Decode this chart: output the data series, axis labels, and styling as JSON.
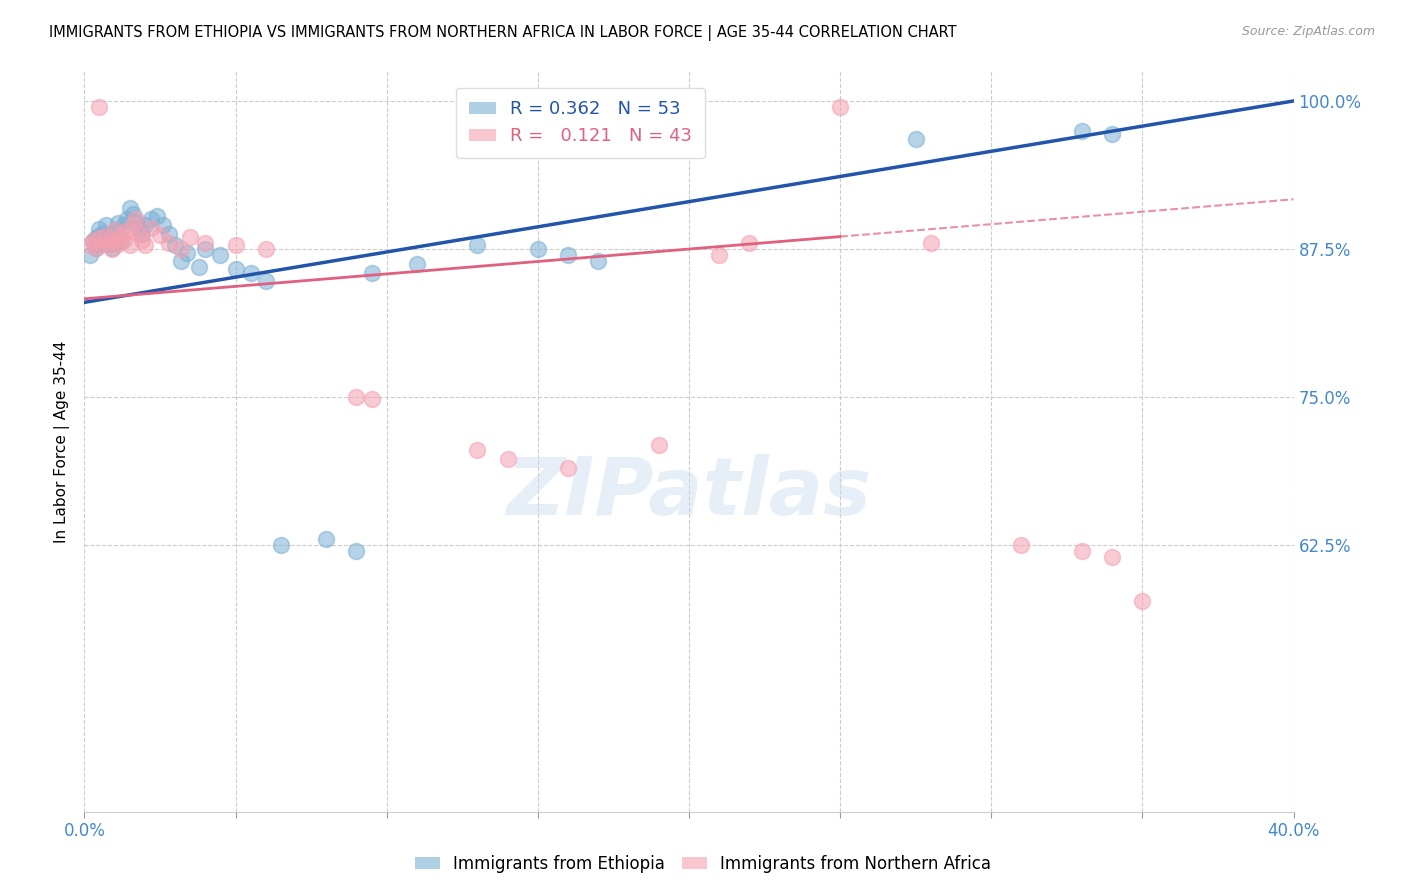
{
  "title": "IMMIGRANTS FROM ETHIOPIA VS IMMIGRANTS FROM NORTHERN AFRICA IN LABOR FORCE | AGE 35-44 CORRELATION CHART",
  "source": "Source: ZipAtlas.com",
  "ylabel": "In Labor Force | Age 35-44",
  "xlim": [
    0.0,
    0.4
  ],
  "ylim": [
    0.4,
    1.025
  ],
  "yticks": [
    1.0,
    0.875,
    0.75,
    0.625
  ],
  "ytick_labels": [
    "100.0%",
    "87.5%",
    "75.0%",
    "62.5%"
  ],
  "xticks": [
    0.0,
    0.05,
    0.1,
    0.15,
    0.2,
    0.25,
    0.3,
    0.35,
    0.4
  ],
  "xtick_labels": [
    "0.0%",
    "",
    "",
    "",
    "",
    "",
    "",
    "",
    "40.0%"
  ],
  "blue_color": "#7BAFD4",
  "pink_color": "#F4A0B0",
  "blue_line_color": "#2255AA",
  "pink_line_color": "#E06080",
  "axis_color": "#4488CC",
  "grid_color": "#CCCCCC",
  "r_blue": 0.362,
  "n_blue": 53,
  "r_pink": 0.121,
  "n_pink": 43,
  "watermark_text": "ZIPatlas",
  "title_fontsize": 11,
  "ylabel_fontsize": 11,
  "blue_x": [
    0.002,
    0.003,
    0.004,
    0.004,
    0.005,
    0.005,
    0.005,
    0.006,
    0.006,
    0.007,
    0.007,
    0.008,
    0.008,
    0.009,
    0.009,
    0.01,
    0.01,
    0.011,
    0.011,
    0.012,
    0.013,
    0.014,
    0.015,
    0.016,
    0.017,
    0.018,
    0.019,
    0.02,
    0.022,
    0.024,
    0.026,
    0.028,
    0.03,
    0.032,
    0.034,
    0.038,
    0.04,
    0.045,
    0.05,
    0.055,
    0.06,
    0.065,
    0.08,
    0.09,
    0.095,
    0.11,
    0.13,
    0.15,
    0.16,
    0.17,
    0.275,
    0.33,
    0.34
  ],
  "blue_y": [
    0.87,
    0.882,
    0.876,
    0.884,
    0.879,
    0.886,
    0.892,
    0.88,
    0.888,
    0.883,
    0.895,
    0.879,
    0.887,
    0.876,
    0.884,
    0.88,
    0.891,
    0.885,
    0.897,
    0.882,
    0.895,
    0.9,
    0.91,
    0.905,
    0.898,
    0.892,
    0.888,
    0.895,
    0.9,
    0.903,
    0.895,
    0.888,
    0.878,
    0.865,
    0.872,
    0.86,
    0.875,
    0.87,
    0.858,
    0.855,
    0.848,
    0.625,
    0.63,
    0.62,
    0.855,
    0.862,
    0.878,
    0.875,
    0.87,
    0.865,
    0.968,
    0.975,
    0.972
  ],
  "pink_x": [
    0.002,
    0.003,
    0.004,
    0.005,
    0.005,
    0.006,
    0.007,
    0.008,
    0.009,
    0.01,
    0.01,
    0.011,
    0.012,
    0.013,
    0.014,
    0.015,
    0.016,
    0.017,
    0.018,
    0.019,
    0.02,
    0.022,
    0.025,
    0.028,
    0.032,
    0.035,
    0.04,
    0.05,
    0.06,
    0.09,
    0.095,
    0.13,
    0.14,
    0.16,
    0.19,
    0.21,
    0.22,
    0.25,
    0.28,
    0.31,
    0.33,
    0.34,
    0.35
  ],
  "pink_y": [
    0.878,
    0.882,
    0.876,
    0.995,
    0.884,
    0.879,
    0.886,
    0.88,
    0.875,
    0.883,
    0.891,
    0.879,
    0.887,
    0.883,
    0.89,
    0.878,
    0.895,
    0.9,
    0.888,
    0.883,
    0.878,
    0.893,
    0.887,
    0.88,
    0.875,
    0.885,
    0.88,
    0.878,
    0.875,
    0.75,
    0.748,
    0.705,
    0.698,
    0.69,
    0.71,
    0.87,
    0.88,
    0.995,
    0.88,
    0.625,
    0.62,
    0.615,
    0.578
  ]
}
